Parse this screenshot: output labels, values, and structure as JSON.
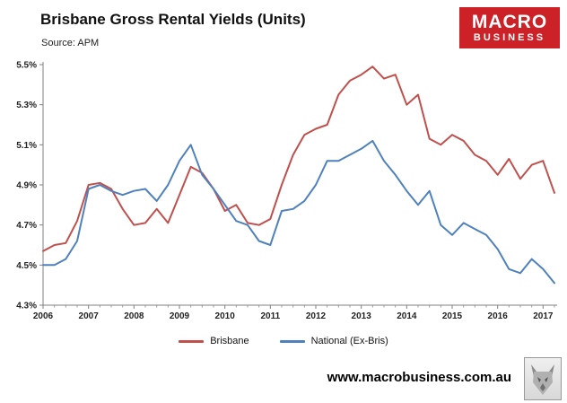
{
  "header": {
    "title": "Brisbane Gross Rental Yields (Units)",
    "source": "Source: APM"
  },
  "logo": {
    "line1": "MACRO",
    "line2": "BUSINESS",
    "bg_color": "#cc2127"
  },
  "chart_data": {
    "type": "line",
    "title": "Brisbane Gross Rental Yields (Units)",
    "xlabel": "",
    "ylabel": "",
    "x_start": 2006,
    "x_step": 0.25,
    "xticks": [
      2006,
      2007,
      2008,
      2009,
      2010,
      2011,
      2012,
      2013,
      2014,
      2015,
      2016,
      2017
    ],
    "ylim": [
      4.3,
      5.5
    ],
    "yticks": [
      4.3,
      4.5,
      4.7,
      4.9,
      5.1,
      5.3,
      5.5
    ],
    "ytick_suffix": "%",
    "grid": false,
    "legend_position": "bottom",
    "series": [
      {
        "name": "Brisbane",
        "color": "#c0504d",
        "values": [
          4.57,
          4.6,
          4.61,
          4.72,
          4.9,
          4.91,
          4.88,
          4.78,
          4.7,
          4.71,
          4.78,
          4.71,
          4.85,
          4.99,
          4.96,
          4.88,
          4.77,
          4.8,
          4.71,
          4.7,
          4.73,
          4.9,
          5.05,
          5.15,
          5.18,
          5.2,
          5.35,
          5.42,
          5.45,
          5.49,
          5.43,
          5.45,
          5.3,
          5.35,
          5.13,
          5.1,
          5.15,
          5.12,
          5.05,
          5.02,
          4.95,
          5.03,
          4.93,
          5.0,
          5.02,
          4.86
        ]
      },
      {
        "name": "National (Ex-Bris)",
        "color": "#4f81bd",
        "values": [
          4.5,
          4.5,
          4.53,
          4.62,
          4.88,
          4.9,
          4.87,
          4.85,
          4.87,
          4.88,
          4.82,
          4.9,
          5.02,
          5.1,
          4.95,
          4.88,
          4.8,
          4.72,
          4.7,
          4.62,
          4.6,
          4.77,
          4.78,
          4.82,
          4.9,
          5.02,
          5.02,
          5.05,
          5.08,
          5.12,
          5.02,
          4.95,
          4.87,
          4.8,
          4.87,
          4.7,
          4.65,
          4.71,
          4.68,
          4.65,
          4.58,
          4.48,
          4.46,
          4.53,
          4.48,
          4.41
        ]
      }
    ]
  },
  "footer": {
    "url": "www.macrobusiness.com.au"
  }
}
